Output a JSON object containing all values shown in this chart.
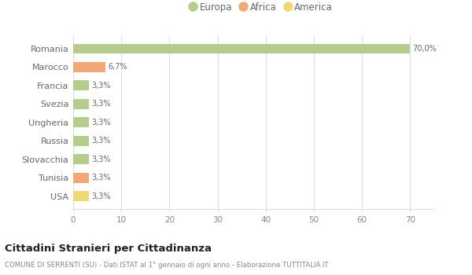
{
  "categories": [
    "Romania",
    "Marocco",
    "Francia",
    "Svezia",
    "Ungheria",
    "Russia",
    "Slovacchia",
    "Tunisia",
    "USA"
  ],
  "values": [
    70.0,
    6.7,
    3.3,
    3.3,
    3.3,
    3.3,
    3.3,
    3.3,
    3.3
  ],
  "colors": [
    "#b5cc8e",
    "#f0a878",
    "#b5cc8e",
    "#b5cc8e",
    "#b5cc8e",
    "#b5cc8e",
    "#b5cc8e",
    "#f0a878",
    "#f0d878"
  ],
  "labels": [
    "70,0%",
    "6,7%",
    "3,3%",
    "3,3%",
    "3,3%",
    "3,3%",
    "3,3%",
    "3,3%",
    "3,3%"
  ],
  "legend": [
    {
      "label": "Europa",
      "color": "#b5cc8e"
    },
    {
      "label": "Africa",
      "color": "#f0a878"
    },
    {
      "label": "America",
      "color": "#f0d878"
    }
  ],
  "xlim": [
    0,
    75
  ],
  "xticks": [
    0,
    10,
    20,
    30,
    40,
    50,
    60,
    70
  ],
  "title": "Cittadini Stranieri per Cittadinanza",
  "subtitle": "COMUNE DI SERRENTI (SU) - Dati ISTAT al 1° gennaio di ogni anno - Elaborazione TUTTITALIA.IT",
  "background_color": "#ffffff",
  "grid_color": "#dddddd",
  "bar_height": 0.55,
  "label_color": "#666666",
  "tick_color": "#888888"
}
